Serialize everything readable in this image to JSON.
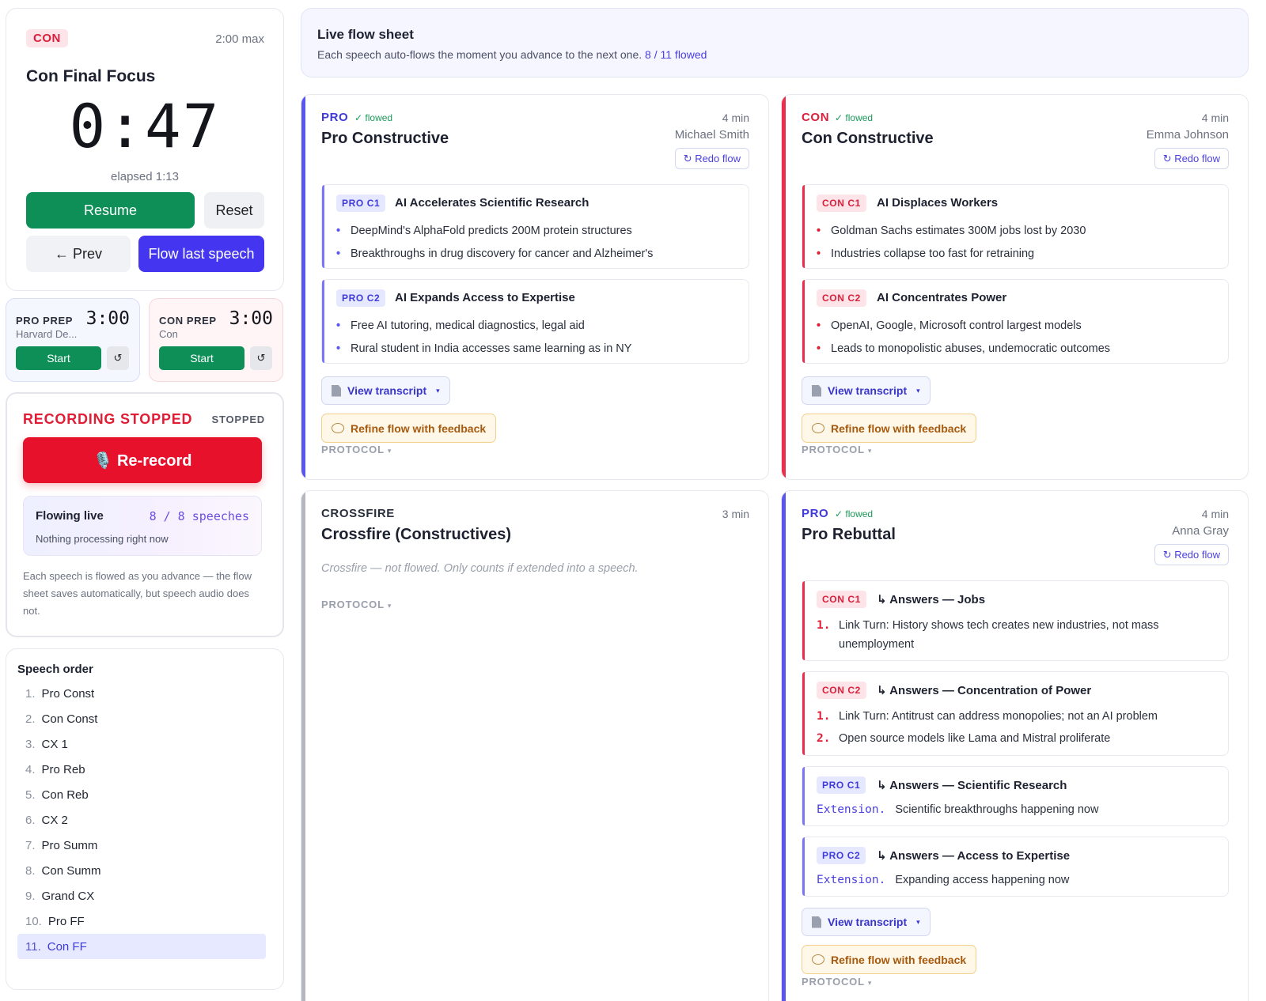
{
  "timer": {
    "side": "CON",
    "max": "2:00 max",
    "title": "Con Final Focus",
    "clock": "0:47",
    "elapsed": "elapsed 1:13",
    "resume": "Resume",
    "reset": "Reset",
    "prev": "← Prev",
    "flow_last": "Flow last speech"
  },
  "prep": {
    "pro": {
      "label": "PRO PREP",
      "team": "Harvard De...",
      "time": "3:00",
      "start": "Start",
      "reset": "↺"
    },
    "con": {
      "label": "CON PREP",
      "team": "Con",
      "time": "3:00",
      "start": "Start",
      "reset": "↺"
    }
  },
  "recording": {
    "title": "RECORDING STOPPED",
    "status": "STOPPED",
    "rerecord": "🎙️ Re-record",
    "flowing_label": "Flowing live",
    "flowing_count": "8 / 8 speeches",
    "flowing_note": "Nothing processing right now",
    "note": "Each speech is flowed as you advance — the flow sheet saves automatically, but speech audio does not."
  },
  "speech_order": {
    "title": "Speech order",
    "items": [
      {
        "n": "1.",
        "label": "Pro Const"
      },
      {
        "n": "2.",
        "label": "Con Const"
      },
      {
        "n": "3.",
        "label": "CX 1"
      },
      {
        "n": "4.",
        "label": "Pro Reb"
      },
      {
        "n": "5.",
        "label": "Con Reb"
      },
      {
        "n": "6.",
        "label": "CX 2"
      },
      {
        "n": "7.",
        "label": "Pro Summ"
      },
      {
        "n": "8.",
        "label": "Con Summ"
      },
      {
        "n": "9.",
        "label": "Grand CX"
      },
      {
        "n": "10.",
        "label": "Pro FF"
      },
      {
        "n": "11.",
        "label": "Con FF"
      }
    ],
    "active_index": 10
  },
  "header": {
    "title": "Live flow sheet",
    "subtitle": "Each speech auto-flows the moment you advance to the next one.",
    "count": "8 / 11 flowed"
  },
  "common": {
    "redo": "↻ Redo flow",
    "view_transcript": "View transcript",
    "refine": "Refine flow with feedback",
    "protocol": "PROTOCOL",
    "flowed": "✓ flowed",
    "caret": "▾"
  },
  "speeches": {
    "pro_const": {
      "side": "PRO",
      "title": "Pro Constructive",
      "time": "4 min",
      "speaker": "Michael Smith",
      "args": [
        {
          "tag": "PRO C1",
          "title": "AI Accelerates Scientific Research",
          "points": [
            "DeepMind's AlphaFold predicts 200M protein structures",
            "Breakthroughs in drug discovery for cancer and Alzheimer's"
          ]
        },
        {
          "tag": "PRO C2",
          "title": "AI Expands Access to Expertise",
          "points": [
            "Free AI tutoring, medical diagnostics, legal aid",
            "Rural student in India accesses same learning as in NY"
          ]
        }
      ]
    },
    "con_const": {
      "side": "CON",
      "title": "Con Constructive",
      "time": "4 min",
      "speaker": "Emma Johnson",
      "args": [
        {
          "tag": "CON C1",
          "title": "AI Displaces Workers",
          "points": [
            "Goldman Sachs estimates 300M jobs lost by 2030",
            "Industries collapse too fast for retraining"
          ]
        },
        {
          "tag": "CON C2",
          "title": "AI Concentrates Power",
          "points": [
            "OpenAI, Google, Microsoft control largest models",
            "Leads to monopolistic abuses, undemocratic outcomes"
          ]
        }
      ]
    },
    "crossfire": {
      "side": "CROSSFIRE",
      "title": "Crossfire (Constructives)",
      "time": "3 min",
      "note": "Crossfire — not flowed. Only counts if extended into a speech."
    },
    "pro_reb": {
      "side": "PRO",
      "title": "Pro Rebuttal",
      "time": "4 min",
      "speaker": "Anna Gray",
      "args": [
        {
          "tag": "CON C1",
          "title": "↳ Answers — Jobs",
          "points": [
            {
              "n": "1.",
              "text": "Link Turn: History shows tech creates new industries, not mass unemployment"
            }
          ]
        },
        {
          "tag": "CON C2",
          "title": "↳ Answers — Concentration of Power",
          "points": [
            {
              "n": "1.",
              "text": "Link Turn: Antitrust can address monopolies; not an AI problem"
            },
            {
              "n": "2.",
              "text": "Open source models like Lama and Mistral proliferate"
            }
          ]
        },
        {
          "tag": "PRO C1",
          "title": "↳ Answers — Scientific Research",
          "ext_label": "Extension.",
          "ext_text": "Scientific breakthroughs happening now"
        },
        {
          "tag": "PRO C2",
          "title": "↳ Answers — Access to Expertise",
          "ext_label": "Extension.",
          "ext_text": "Expanding access happening now"
        }
      ]
    }
  },
  "colors": {
    "pro": "#5b55f0",
    "con": "#ec2d4c",
    "resume": "#0e8f58",
    "flow_last": "#4436f0",
    "rerecord": "#e8112b"
  },
  "icons": {
    "transcript": "document-icon",
    "refine": "speech-bubble-icon",
    "redo": "refresh-icon",
    "rerecord": "microphone-icon"
  }
}
